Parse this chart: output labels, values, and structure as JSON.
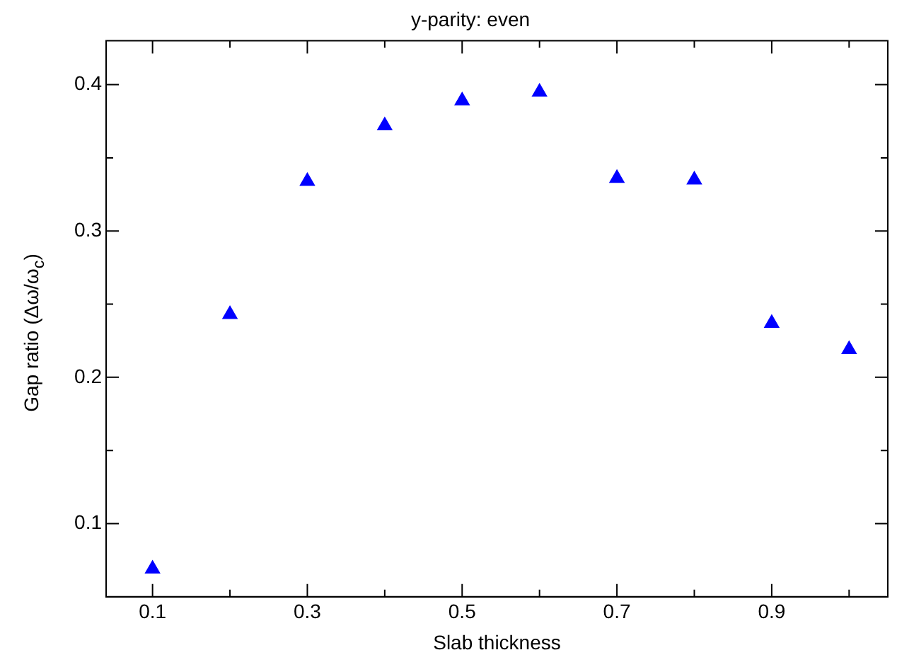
{
  "chart_data": {
    "type": "scatter",
    "title": "y-parity: even",
    "xlabel": "Slab thickness",
    "ylabel": "Gap ratio (Δω/ω$_{c}$)",
    "x": [
      0.1,
      0.2,
      0.3,
      0.4,
      0.5,
      0.6,
      0.7,
      0.8,
      0.9,
      1.0
    ],
    "series": [
      {
        "color": "#0000ff",
        "values": [
          0.069,
          0.243,
          0.334,
          0.372,
          0.389,
          0.395,
          0.336,
          0.335,
          0.237,
          0.219
        ]
      }
    ],
    "marker": "triangle",
    "grid": false,
    "legend": false,
    "xlim": [
      0.04,
      1.05
    ],
    "ylim": [
      0.05,
      0.43
    ],
    "xticks": [
      0.1,
      {
        "value": 0.2,
        "label": null
      },
      0.3,
      {
        "value": 0.4,
        "label": null
      },
      0.5,
      {
        "value": 0.6,
        "label": null
      },
      0.7,
      {
        "value": 0.8,
        "label": null
      },
      0.9,
      {
        "value": 1.0,
        "label": null
      }
    ],
    "yticks": [
      0.1,
      {
        "value": 0.15,
        "label": null
      },
      0.2,
      {
        "value": 0.25,
        "label": null
      },
      0.3,
      {
        "value": 0.35,
        "label": null
      },
      0.4
    ]
  }
}
